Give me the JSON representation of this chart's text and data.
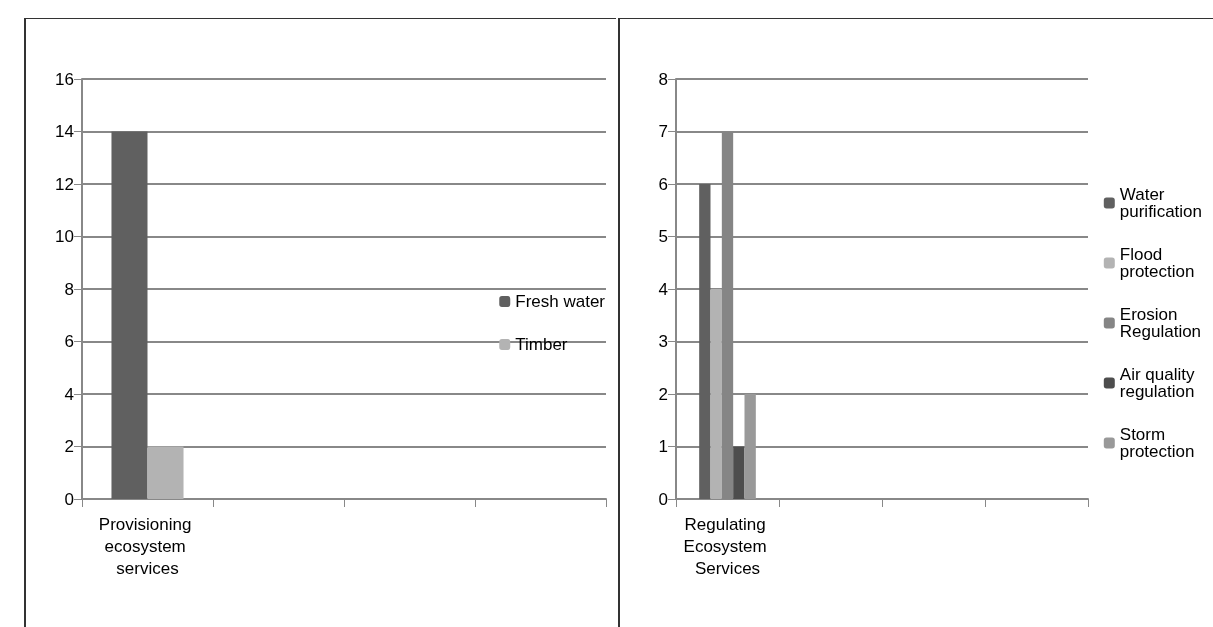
{
  "chart_data": [
    {
      "type": "bar",
      "categories": [
        "Provisioning ecosystem services",
        null,
        null,
        null
      ],
      "series": [
        {
          "name": "Fresh water",
          "color": "#606060",
          "values": [
            14,
            null,
            null,
            null
          ]
        },
        {
          "name": "Timber",
          "color": "#b3b3b3",
          "values": [
            2,
            null,
            null,
            null
          ]
        }
      ],
      "ylim": [
        0,
        16
      ],
      "yticks": [
        0,
        2,
        4,
        6,
        8,
        10,
        12,
        14,
        16
      ],
      "grid": "y",
      "legend": "right"
    },
    {
      "type": "bar",
      "categories": [
        "Regulating Ecosystem Services",
        null,
        null,
        null
      ],
      "series": [
        {
          "name": "Water purification",
          "color": "#606060",
          "values": [
            6,
            null,
            null,
            null
          ]
        },
        {
          "name": "Flood protection",
          "color": "#b3b3b3",
          "values": [
            4,
            null,
            null,
            null
          ]
        },
        {
          "name": "Erosion Regulation",
          "color": "#858585",
          "values": [
            7,
            null,
            null,
            null
          ]
        },
        {
          "name": "Air quality regulation",
          "color": "#4d4d4d",
          "values": [
            1,
            null,
            null,
            null
          ]
        },
        {
          "name": "Storm protection",
          "color": "#999999",
          "values": [
            2,
            null,
            null,
            null
          ]
        }
      ],
      "ylim": [
        0,
        8
      ],
      "yticks": [
        0,
        1,
        2,
        3,
        4,
        5,
        6,
        7,
        8
      ],
      "grid": "y",
      "legend": "right"
    }
  ]
}
